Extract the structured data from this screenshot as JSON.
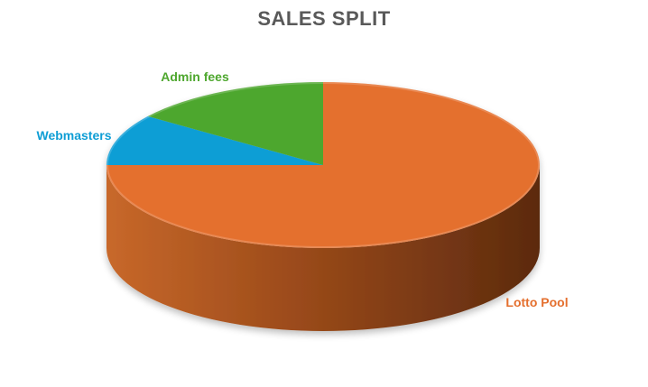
{
  "chart_data": {
    "type": "pie",
    "title": "SALES SPLIT",
    "slices": [
      {
        "label": "Lotto Pool",
        "value": 75,
        "color": "#E46F2E",
        "side_color": "#A8501C"
      },
      {
        "label": "Webmasters",
        "value": 10,
        "color": "#0F9ED5",
        "side_color": "#0B6F96"
      },
      {
        "label": "Admin fees",
        "value": 15,
        "color": "#4EA72E",
        "side_color": "#3A7D22"
      }
    ],
    "start_angle_deg": 90,
    "direction": "clockwise",
    "style": "3d",
    "legend": "none",
    "data_labels": "category name"
  }
}
